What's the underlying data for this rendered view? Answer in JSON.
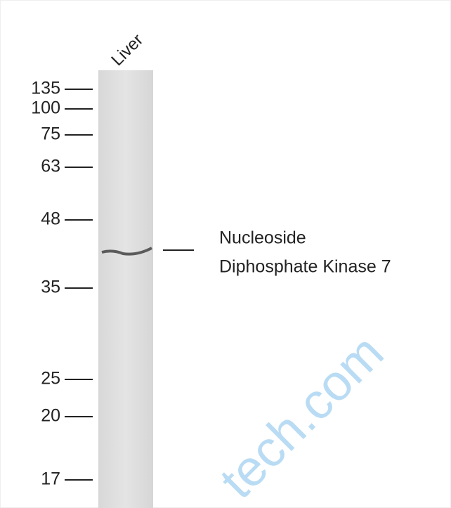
{
  "lane_label": "Liver",
  "markers": [
    135,
    100,
    75,
    63,
    48,
    35,
    25,
    20,
    17
  ],
  "band_label": [
    "Nucleoside",
    "Diphosphate Kinase 7"
  ],
  "watermark": "tech.com"
}
